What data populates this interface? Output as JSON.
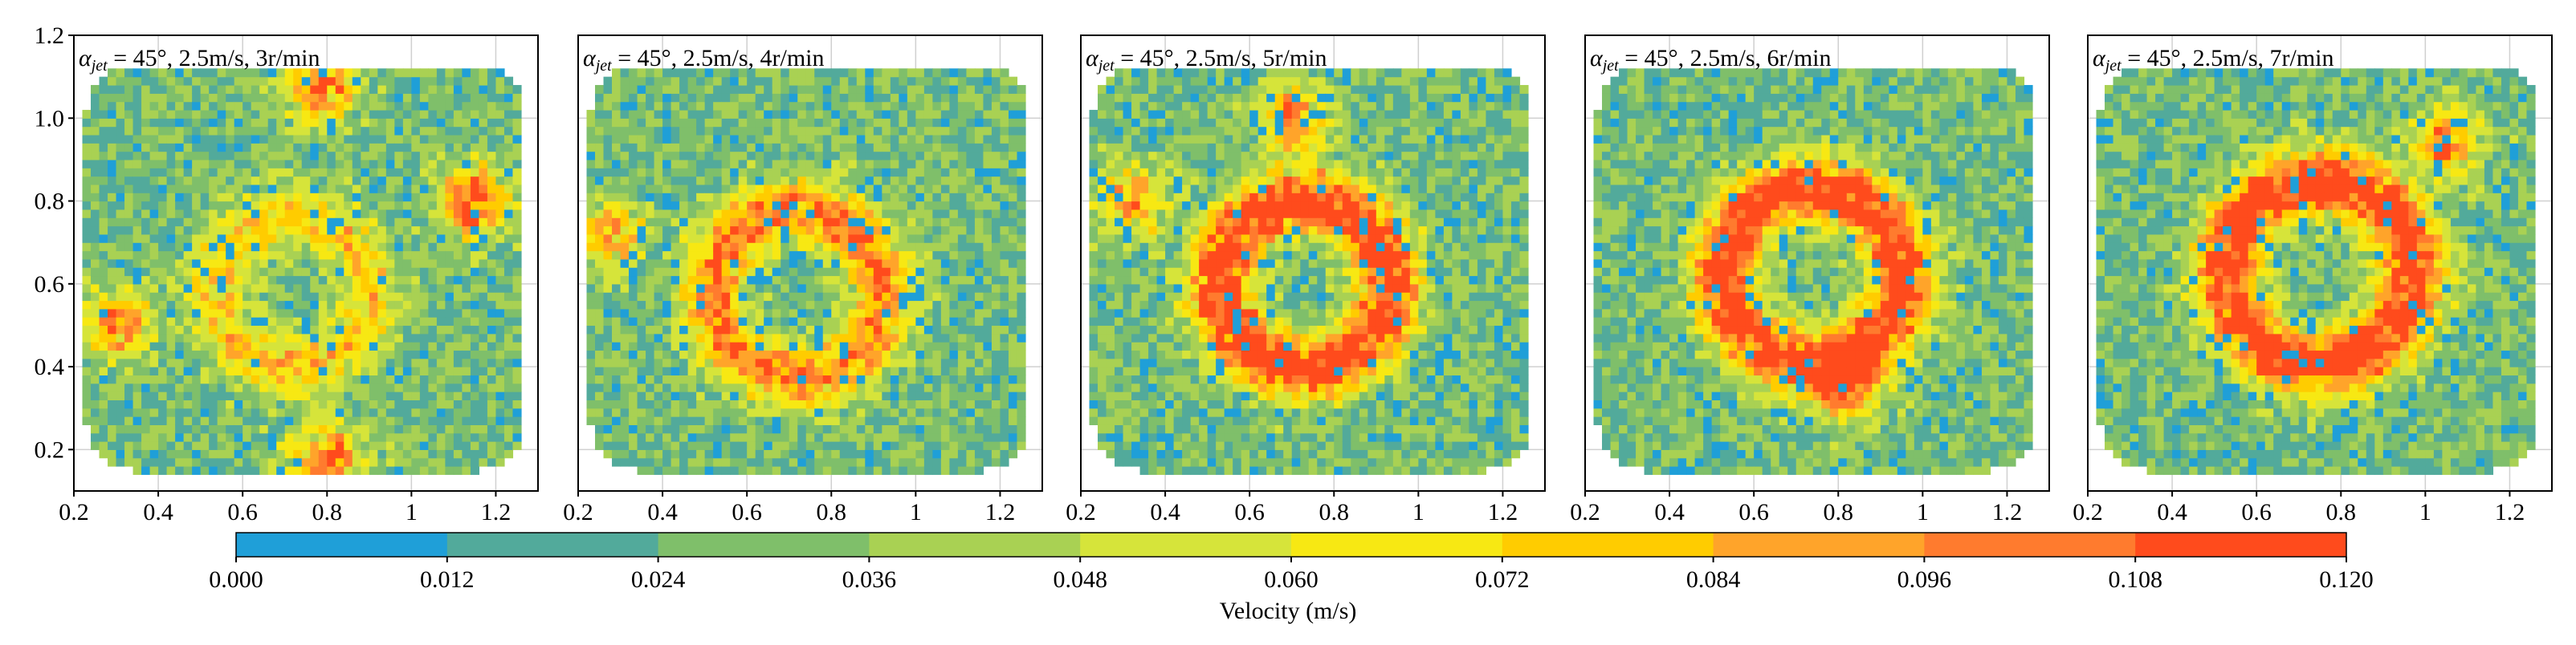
{
  "figure": {
    "colorbar_label": "Velocity (m/s)",
    "colorbar_ticks": [
      "0.000",
      "0.012",
      "0.024",
      "0.036",
      "0.048",
      "0.060",
      "0.072",
      "0.084",
      "0.096",
      "0.108",
      "0.120"
    ],
    "colorbar_colors": [
      "#1f9fd8",
      "#52aa9b",
      "#7fbf6a",
      "#a9d153",
      "#d6e43a",
      "#f7e813",
      "#ffcc00",
      "#ffa42a",
      "#ff7b2e",
      "#ff4b1c"
    ],
    "y_tick_labels": [
      "0.2",
      "0.4",
      "0.6",
      "0.8",
      "1.0",
      "1.2"
    ],
    "x_tick_labels": [
      "0.2",
      "0.4",
      "0.6",
      "0.8",
      "1",
      "1.2"
    ]
  },
  "chart_data": [
    {
      "type": "heatmap",
      "title_sym": "α",
      "title_sub": "jet",
      "title_rest": " = 45°, 2.5m/s, 3r/min",
      "xlim": [
        0.2,
        1.3
      ],
      "ylim": [
        0.1,
        1.2
      ],
      "xticks": [
        0.2,
        0.4,
        0.6,
        0.8,
        1.0,
        1.2
      ],
      "yticks": [
        0.2,
        0.4,
        0.6,
        0.8,
        1.0,
        1.2
      ],
      "ring": {
        "center": [
          0.72,
          0.58
        ],
        "radius": 0.18,
        "peak": 0.055
      },
      "hotspots": [
        {
          "x": 0.78,
          "y": 1.07,
          "v": 0.1
        },
        {
          "x": 1.15,
          "y": 0.8,
          "v": 0.11
        },
        {
          "x": 0.8,
          "y": 0.18,
          "v": 0.1
        },
        {
          "x": 0.3,
          "y": 0.5,
          "v": 0.08
        }
      ]
    },
    {
      "type": "heatmap",
      "title_sym": "α",
      "title_sub": "jet",
      "title_rest": " = 45°, 2.5m/s, 4r/min",
      "xlim": [
        0.2,
        1.3
      ],
      "ylim": [
        0.1,
        1.2
      ],
      "xticks": [
        0.2,
        0.4,
        0.6,
        0.8,
        1.0,
        1.2
      ],
      "yticks": [
        0.2,
        0.4,
        0.6,
        0.8,
        1.0,
        1.2
      ],
      "ring": {
        "center": [
          0.72,
          0.58
        ],
        "radius": 0.2,
        "peak": 0.085
      },
      "hotspots": [
        {
          "x": 0.28,
          "y": 0.72,
          "v": 0.08
        }
      ]
    },
    {
      "type": "heatmap",
      "title_sym": "α",
      "title_sub": "jet",
      "title_rest": " = 45°, 2.5m/s, 5r/min",
      "xlim": [
        0.2,
        1.3
      ],
      "ylim": [
        0.1,
        1.2
      ],
      "xticks": [
        0.2,
        0.4,
        0.6,
        0.8,
        1.0,
        1.2
      ],
      "yticks": [
        0.2,
        0.4,
        0.6,
        0.8,
        1.0,
        1.2
      ],
      "ring": {
        "center": [
          0.73,
          0.6
        ],
        "radius": 0.2,
        "peak": 0.115
      },
      "hotspots": [
        {
          "x": 0.7,
          "y": 1.0,
          "v": 0.09
        },
        {
          "x": 0.32,
          "y": 0.8,
          "v": 0.08
        }
      ]
    },
    {
      "type": "heatmap",
      "title_sym": "α",
      "title_sub": "jet",
      "title_rest": " = 45°, 2.5m/s, 6r/min",
      "xlim": [
        0.2,
        1.3
      ],
      "ylim": [
        0.1,
        1.2
      ],
      "xticks": [
        0.2,
        0.4,
        0.6,
        0.8,
        1.0,
        1.2
      ],
      "yticks": [
        0.2,
        0.4,
        0.6,
        0.8,
        1.0,
        1.2
      ],
      "ring": {
        "center": [
          0.74,
          0.62
        ],
        "radius": 0.21,
        "peak": 0.118
      },
      "hotspots": [
        {
          "x": 0.82,
          "y": 0.35,
          "v": 0.08
        }
      ]
    },
    {
      "type": "heatmap",
      "title_sym": "α",
      "title_sub": "jet",
      "title_rest": " = 45°, 2.5m/s, 7r/min",
      "xlim": [
        0.2,
        1.3
      ],
      "ylim": [
        0.1,
        1.2
      ],
      "xticks": [
        0.2,
        0.4,
        0.6,
        0.8,
        1.0,
        1.2
      ],
      "yticks": [
        0.2,
        0.4,
        0.6,
        0.8,
        1.0,
        1.2
      ],
      "ring": {
        "center": [
          0.75,
          0.63
        ],
        "radius": 0.22,
        "peak": 0.12
      },
      "hotspots": [
        {
          "x": 1.05,
          "y": 0.95,
          "v": 0.09
        }
      ]
    }
  ]
}
